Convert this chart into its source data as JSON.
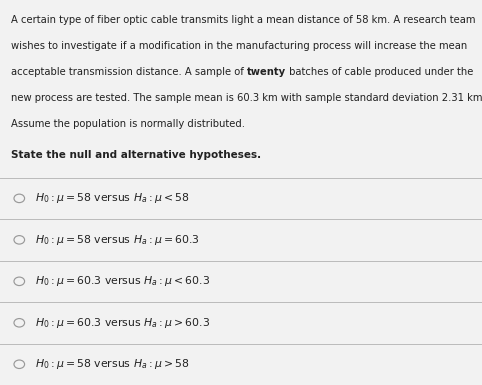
{
  "background_color": "#d8d8d8",
  "panel_color": "#e8e8e8",
  "content_bg": "#f2f2f2",
  "text_color": "#222222",
  "gray_text": "#555555",
  "para_lines": [
    [
      [
        "A certain type of fiber optic cable transmits light a mean distance of 58 km. A research team",
        false
      ]
    ],
    [
      [
        "wishes to investigate if a modification in the manufacturing process will increase the mean",
        false
      ]
    ],
    [
      [
        "acceptable transmission distance. A sample of ",
        false
      ],
      [
        "twenty",
        true
      ],
      [
        " batches of cable produced under the",
        false
      ]
    ],
    [
      [
        "new process are tested. The sample mean is 60.3 km with sample standard deviation 2.31 km.",
        false
      ]
    ],
    [
      [
        "Assume the population is normally distributed.",
        false
      ]
    ]
  ],
  "question": "State the null and alternative hypotheses.",
  "options": [
    "$H_0 : \\mu = 58$ versus $H_a : \\mu < 58$",
    "$H_0 : \\mu = 58$ versus $H_a : \\mu = 60.3$",
    "$H_0 : \\mu = 60.3$ versus $H_a : \\mu < 60.3$",
    "$H_0 : \\mu = 60.3$ versus $H_a : \\mu > 60.3$",
    "$H_0 : \\mu = 58$ versus $H_a : \\mu > 58$"
  ],
  "divider_color": "#bbbbbb",
  "circle_color": "#999999",
  "figsize": [
    4.82,
    3.85
  ],
  "dpi": 100,
  "para_fontsize": 7.2,
  "question_fontsize": 7.5,
  "option_fontsize": 7.8
}
